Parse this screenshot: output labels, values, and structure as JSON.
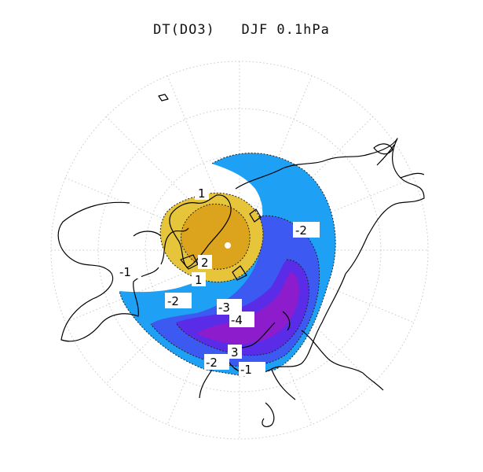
{
  "title": "DT(DO3)   DJF 0.1hPa",
  "colors": {
    "pos_level_1": "#e6c53a",
    "pos_level_2": "#dca31c",
    "neg_level_1": "#1ea0f5",
    "neg_level_2": "#3c5af2",
    "neg_level_3": "#5a2ce8",
    "neg_level_4": "#8c1ccc",
    "coastline": "#000000",
    "graticule": "#c8c8c8"
  },
  "contour_labels": [
    "1",
    "2",
    "1",
    "-1",
    "-2",
    "-2",
    "-3",
    "-4",
    "3",
    "-2",
    "-1"
  ]
}
